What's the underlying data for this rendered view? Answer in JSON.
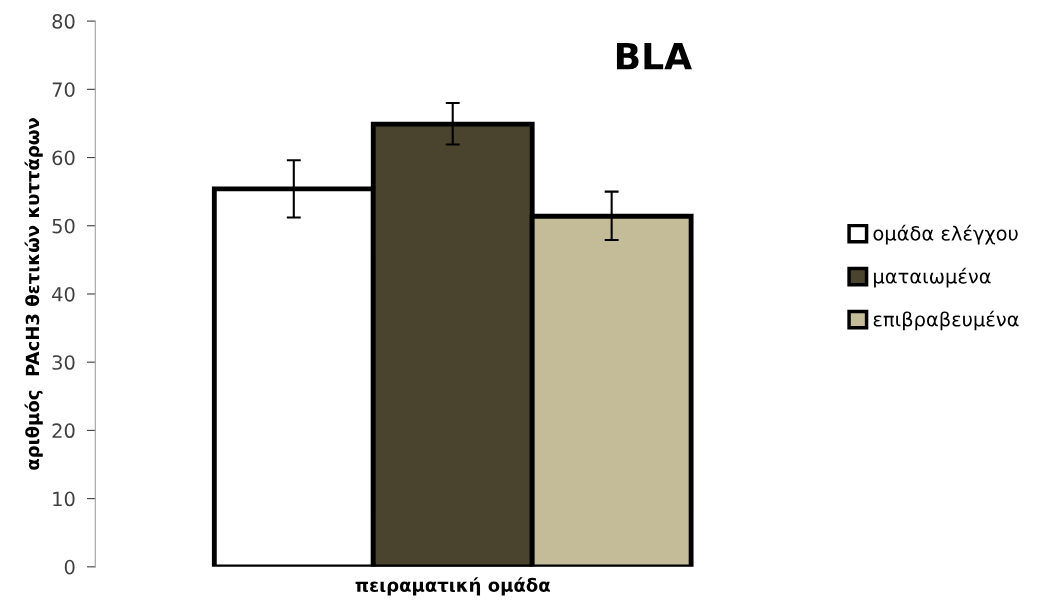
{
  "chart_data": {
    "type": "bar",
    "title": "BLA",
    "xlabel": "πειραματική ομάδα",
    "ylabel": "αριθμός  PAcH3 θετικών κυττάρων",
    "categories": [
      null
    ],
    "series": [
      {
        "name": "ομάδα ελέγχου",
        "color": "#ffffff",
        "values": [
          55.4
        ],
        "errors": [
          [
            51.2,
            59.6
          ]
        ]
      },
      {
        "name": "ματαιωμένα",
        "color": "#4a432d",
        "values": [
          64.9
        ],
        "errors": [
          [
            61.9,
            68.0
          ]
        ]
      },
      {
        "name": "επιβραβευμένα",
        "color": "#c4bc98",
        "values": [
          51.4
        ],
        "errors": [
          [
            47.9,
            55.0
          ]
        ]
      }
    ],
    "ylim": [
      0,
      80
    ],
    "yticks": [
      0,
      10,
      20,
      30,
      40,
      50,
      60,
      70,
      80
    ],
    "grid": false,
    "legend": "right"
  }
}
